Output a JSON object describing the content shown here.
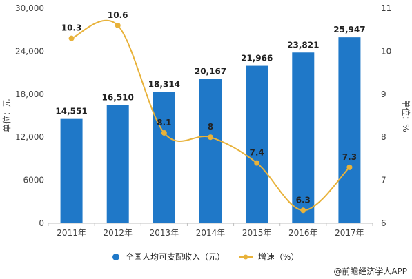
{
  "chart_data": {
    "type": "bar",
    "categories": [
      "2011年",
      "2012年",
      "2013年",
      "2014年",
      "2015年",
      "2016年",
      "2017年"
    ],
    "series": [
      {
        "name": "全国人均可支配收入（元）",
        "type": "bar",
        "axis": "left",
        "values": [
          14551,
          16510,
          18314,
          20167,
          21966,
          23821,
          25947
        ],
        "labels": [
          "14,551",
          "16,510",
          "18,314",
          "20,167",
          "21,966",
          "23,821",
          "25,947"
        ]
      },
      {
        "name": "增速（%）",
        "type": "line",
        "axis": "right",
        "values": [
          10.3,
          10.6,
          8.1,
          8,
          7.4,
          6.3,
          7.3
        ],
        "labels": [
          "10.3",
          "10.6",
          "8.1",
          "8",
          "7.4",
          "6.3",
          "7.3"
        ]
      }
    ],
    "ylabel": "单位：元",
    "y2label": "单位：%",
    "ylim": [
      0,
      30000
    ],
    "y2lim": [
      6,
      11
    ],
    "yticks": [
      "0",
      "6000",
      "12,000",
      "18,000",
      "24,000",
      "30,000"
    ],
    "y2ticks": [
      "6",
      "7",
      "8",
      "9",
      "10",
      "11"
    ],
    "legend_position": "bottom",
    "grid": false
  },
  "credit": "@前瞻经济学人APP",
  "colors": {
    "bar": "#1f78c8",
    "line": "#e8b23a"
  }
}
